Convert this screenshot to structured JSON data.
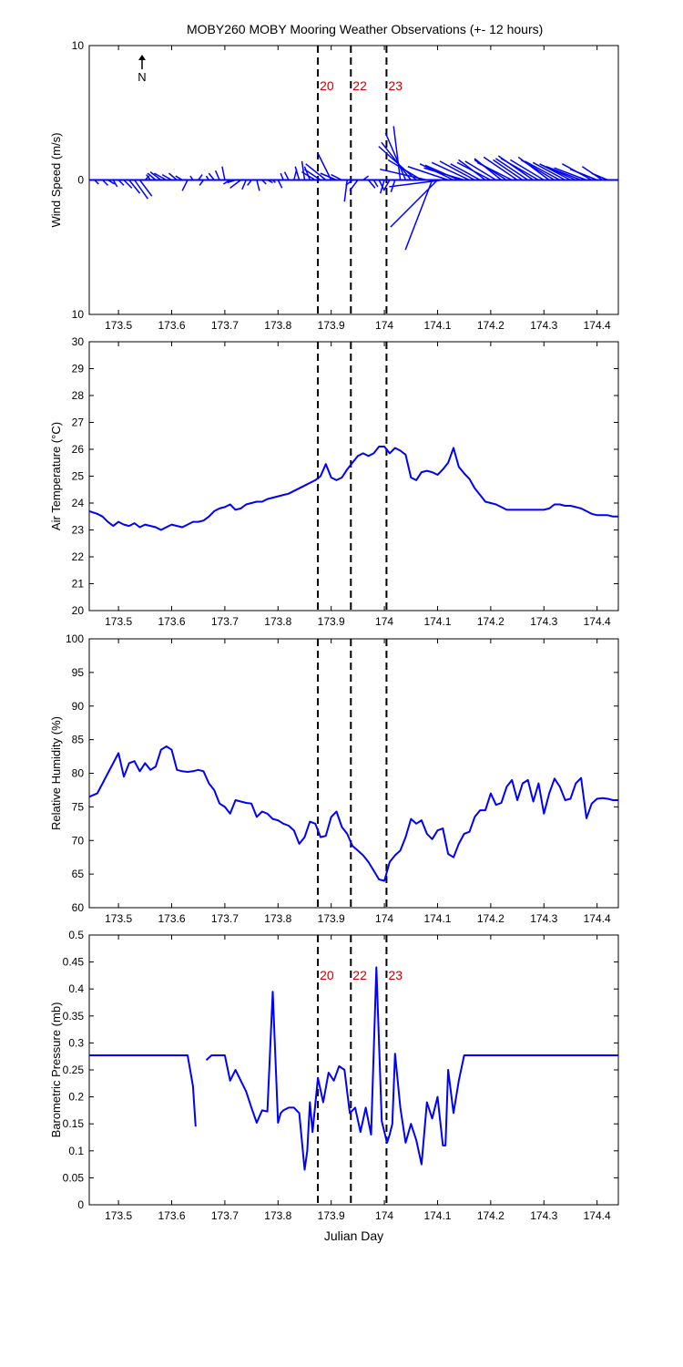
{
  "figure": {
    "title": "MOBY260 MOBY Mooring Weather Observations (+- 12 hours)",
    "xlabel": "Julian Day",
    "north_label": "N",
    "colors": {
      "series": "#0000ff",
      "marker_label": "#cc0000",
      "axis": "#000000"
    }
  },
  "markers": [
    {
      "label": "20",
      "x": 173.875
    },
    {
      "label": "22",
      "x": 173.937
    },
    {
      "label": "23",
      "x": 174.004
    }
  ],
  "chart_data": [
    {
      "type": "line",
      "subtype": "wind-barbs",
      "ylabel": "Wind Speed (m/s)",
      "xlim": [
        173.445,
        174.44
      ],
      "ylim": [
        -10,
        10
      ],
      "yticks": [
        10,
        0,
        10
      ],
      "xticks": [
        "173.5",
        "173.6",
        "173.7",
        "173.8",
        "173.9",
        "174",
        "174.1",
        "174.2",
        "174.3",
        "174.4"
      ],
      "markers_labeled": true,
      "show_north_arrow": true,
      "series": [
        {
          "x": [
            173.455,
            173.47,
            173.48,
            173.49,
            173.5,
            173.51,
            173.52,
            173.53,
            173.54,
            173.55,
            173.56,
            173.57,
            173.58,
            173.59,
            173.6,
            173.61,
            173.62,
            173.63,
            173.64,
            173.65,
            173.66,
            173.67,
            173.68,
            173.69,
            173.7,
            173.71,
            173.72,
            173.73,
            173.74,
            173.75,
            173.76,
            173.77,
            173.78,
            173.79,
            173.8,
            173.81,
            173.82,
            173.83,
            173.84,
            173.85,
            173.86,
            173.87,
            173.88,
            173.89,
            173.9,
            173.91,
            173.92,
            173.93,
            173.94,
            173.95,
            173.96,
            173.97,
            173.98,
            173.99,
            174.0,
            174.01,
            174.02,
            174.03,
            174.04,
            174.05,
            174.06,
            174.07,
            174.08,
            174.09,
            174.1,
            174.11,
            174.12,
            174.13,
            174.14,
            174.15,
            174.16,
            174.17,
            174.18,
            174.19,
            174.2,
            174.21,
            174.22,
            174.23,
            174.24,
            174.25,
            174.26,
            174.27,
            174.28,
            174.29,
            174.3,
            174.31,
            174.32,
            174.33,
            174.34,
            174.35,
            174.36,
            174.37,
            174.38,
            174.39,
            174.4,
            174.41,
            174.42
          ],
          "u": [
            0.3,
            0.4,
            0.5,
            0.3,
            0.4,
            0.6,
            0.8,
            1.0,
            0.9,
            0.3,
            -0.3,
            -0.6,
            -0.8,
            -0.9,
            -0.7,
            -0.6,
            -0.5,
            -0.4,
            -0.2,
            0.3,
            -0.3,
            -0.2,
            -0.4,
            -0.3,
            -0.2,
            -0.5,
            -0.6,
            -0.8,
            -0.3,
            -0.3,
            0.2,
            0.3,
            0.4,
            0.2,
            0.3,
            -0.2,
            -0.3,
            0.2,
            -0.3,
            -0.2,
            -0.4,
            -1.0,
            -1.2,
            -1.5,
            -1.0,
            -1.2,
            -0.8,
            -0.2,
            -0.5,
            -0.6,
            0.4,
            0.5,
            0.3,
            0.4,
            -0.3,
            -0.4,
            -0.3,
            -0.5,
            -1.5,
            -2.2,
            -2.8,
            -2.5,
            -3.5,
            -2.0,
            -3.5,
            -4.0,
            -3.0,
            -2.5,
            -2.5,
            -3.0,
            -2.8,
            -2.6,
            -2.2,
            -2.0,
            -2.5,
            -2.3,
            -2.0,
            -2.4,
            -2.6,
            -2.5,
            -2.2,
            -2.4,
            -2.6,
            -2.8,
            -2.5,
            -2.3,
            -2.5,
            -2.6,
            -2.4,
            -2.3,
            -2.5,
            -2.6,
            -2.4,
            -2.2,
            -2.0,
            -1.5,
            -1.2
          ],
          "v": [
            -0.3,
            -0.4,
            -0.3,
            -0.5,
            -0.4,
            -0.6,
            -1.0,
            -1.4,
            -1.2,
            0.3,
            0.4,
            0.5,
            0.6,
            0.5,
            0.4,
            0.5,
            0.3,
            -0.8,
            0.3,
            0.4,
            -0.4,
            0.3,
            0.5,
            0.7,
            1.0,
            -0.3,
            -0.2,
            -0.6,
            -0.7,
            -0.4,
            -0.8,
            -0.3,
            -0.2,
            -0.2,
            -0.6,
            0.5,
            0.6,
            0.8,
            1.0,
            1.4,
            1.0,
            0.6,
            0.8,
            1.2,
            2.0,
            0.5,
            0.4,
            -1.6,
            -0.4,
            -0.8,
            0.3,
            -0.6,
            -0.5,
            -0.8,
            -1.0,
            -0.7,
            -0.9,
            4.0,
            3.5,
            2.8,
            2.5,
            1.5,
            0.8,
            -5.2,
            -3.5,
            -0.5,
            1.0,
            1.2,
            1.1,
            0.9,
            1.3,
            1.4,
            1.2,
            1.5,
            1.3,
            1.4,
            1.6,
            1.5,
            1.3,
            1.7,
            1.5,
            1.6,
            1.8,
            1.6,
            1.5,
            1.7,
            1.5,
            1.4,
            1.3,
            1.2,
            1.1,
            1.0,
            0.9,
            1.2,
            0.8,
            1.0,
            0.5
          ]
        }
      ]
    },
    {
      "type": "line",
      "ylabel": "Air Temperature (°C)",
      "xlim": [
        173.445,
        174.44
      ],
      "ylim": [
        20,
        30
      ],
      "yticks": [
        20,
        21,
        22,
        23,
        24,
        25,
        26,
        27,
        28,
        29,
        30
      ],
      "xticks": [
        "173.5",
        "173.6",
        "173.7",
        "173.8",
        "173.9",
        "174",
        "174.1",
        "174.2",
        "174.3",
        "174.4"
      ],
      "markers_labeled": false,
      "series": [
        {
          "x": [
            173.445,
            173.46,
            173.47,
            173.48,
            173.49,
            173.5,
            173.51,
            173.52,
            173.53,
            173.54,
            173.55,
            173.56,
            173.57,
            173.58,
            173.59,
            173.6,
            173.61,
            173.62,
            173.63,
            173.64,
            173.65,
            173.66,
            173.67,
            173.68,
            173.69,
            173.7,
            173.71,
            173.72,
            173.73,
            173.74,
            173.75,
            173.76,
            173.77,
            173.78,
            173.79,
            173.8,
            173.81,
            173.82,
            173.83,
            173.84,
            173.85,
            173.86,
            173.87,
            173.88,
            173.89,
            173.9,
            173.91,
            173.92,
            173.93,
            173.94,
            173.95,
            173.96,
            173.97,
            173.98,
            173.99,
            174.0,
            174.01,
            174.02,
            174.03,
            174.04,
            174.05,
            174.06,
            174.07,
            174.08,
            174.09,
            174.1,
            174.11,
            174.12,
            174.13,
            174.14,
            174.15,
            174.16,
            174.17,
            174.18,
            174.19,
            174.2,
            174.21,
            174.22,
            174.23,
            174.24,
            174.25,
            174.26,
            174.27,
            174.28,
            174.29,
            174.3,
            174.31,
            174.32,
            174.33,
            174.34,
            174.35,
            174.36,
            174.37,
            174.38,
            174.39,
            174.4,
            174.41,
            174.42,
            174.43,
            174.44
          ],
          "y": [
            23.7,
            23.6,
            23.5,
            23.3,
            23.15,
            23.3,
            23.2,
            23.15,
            23.25,
            23.1,
            23.2,
            23.15,
            23.1,
            23.0,
            23.1,
            23.2,
            23.15,
            23.1,
            23.2,
            23.3,
            23.3,
            23.35,
            23.5,
            23.7,
            23.8,
            23.85,
            23.95,
            23.75,
            23.8,
            23.95,
            24.0,
            24.05,
            24.05,
            24.15,
            24.2,
            24.25,
            24.3,
            24.35,
            24.45,
            24.55,
            24.65,
            24.75,
            24.85,
            25.0,
            25.45,
            24.95,
            24.85,
            24.95,
            25.25,
            25.5,
            25.75,
            25.85,
            25.75,
            25.85,
            26.1,
            26.1,
            25.85,
            26.05,
            25.95,
            25.8,
            24.95,
            24.85,
            25.15,
            25.2,
            25.15,
            25.05,
            25.25,
            25.5,
            26.05,
            25.35,
            25.1,
            24.9,
            24.55,
            24.3,
            24.05,
            24.0,
            23.95,
            23.85,
            23.75,
            23.75,
            23.75,
            23.75,
            23.75,
            23.75,
            23.75,
            23.75,
            23.8,
            23.95,
            23.95,
            23.9,
            23.9,
            23.85,
            23.8,
            23.7,
            23.6,
            23.55,
            23.55,
            23.55,
            23.5,
            23.5
          ]
        }
      ]
    },
    {
      "type": "line",
      "ylabel": "Relative Humidity (%)",
      "xlim": [
        173.445,
        174.44
      ],
      "ylim": [
        60,
        100
      ],
      "yticks": [
        60,
        65,
        70,
        75,
        80,
        85,
        90,
        95,
        100
      ],
      "xticks": [
        "173.5",
        "173.6",
        "173.7",
        "173.8",
        "173.9",
        "174",
        "174.1",
        "174.2",
        "174.3",
        "174.4"
      ],
      "markers_labeled": false,
      "series": [
        {
          "x": [
            173.445,
            173.46,
            173.47,
            173.48,
            173.49,
            173.5,
            173.51,
            173.52,
            173.53,
            173.54,
            173.55,
            173.56,
            173.57,
            173.58,
            173.59,
            173.6,
            173.61,
            173.62,
            173.63,
            173.64,
            173.65,
            173.66,
            173.67,
            173.68,
            173.69,
            173.7,
            173.71,
            173.72,
            173.73,
            173.74,
            173.75,
            173.76,
            173.77,
            173.78,
            173.79,
            173.8,
            173.81,
            173.82,
            173.83,
            173.84,
            173.85,
            173.86,
            173.87,
            173.88,
            173.89,
            173.9,
            173.91,
            173.92,
            173.93,
            173.94,
            173.95,
            173.96,
            173.97,
            173.98,
            173.99,
            174.0,
            174.01,
            174.02,
            174.03,
            174.04,
            174.05,
            174.06,
            174.07,
            174.08,
            174.09,
            174.1,
            174.11,
            174.12,
            174.13,
            174.14,
            174.15,
            174.16,
            174.17,
            174.18,
            174.19,
            174.2,
            174.21,
            174.22,
            174.23,
            174.24,
            174.25,
            174.26,
            174.27,
            174.28,
            174.29,
            174.3,
            174.31,
            174.32,
            174.33,
            174.34,
            174.35,
            174.36,
            174.37,
            174.38,
            174.39,
            174.4,
            174.41,
            174.42,
            174.43,
            174.44
          ],
          "y": [
            76.5,
            77,
            78.5,
            80,
            81.5,
            83,
            79.5,
            81.5,
            81.8,
            80.3,
            81.5,
            80.5,
            81,
            83.5,
            84,
            83.5,
            80.5,
            80.3,
            80.2,
            80.3,
            80.5,
            80.3,
            78.5,
            77.5,
            75.5,
            75,
            74,
            76,
            75.8,
            75.6,
            75.5,
            73.5,
            74.3,
            74,
            73.2,
            73,
            72.5,
            72.2,
            71.5,
            69.5,
            70.5,
            72.8,
            72.5,
            70.5,
            70.7,
            73.5,
            74.3,
            72,
            71,
            69.2,
            68.5,
            67.8,
            66.8,
            65.5,
            64.2,
            64,
            66.8,
            67.8,
            68.5,
            70.5,
            73.2,
            72.5,
            73,
            71,
            70.2,
            71.5,
            71.8,
            68,
            67.5,
            69.5,
            71,
            71.3,
            73.5,
            74.5,
            74.5,
            77,
            75.3,
            75.6,
            78,
            79,
            76,
            78.5,
            79,
            75.8,
            78.5,
            74,
            77,
            79.2,
            78,
            76,
            76.2,
            78.5,
            79.3,
            73.3,
            75.5,
            76.2,
            76.3,
            76.2,
            76.0,
            76.0
          ]
        }
      ]
    },
    {
      "type": "line",
      "ylabel": "Barometric Pressure (mb)",
      "xlabel": "Julian Day",
      "xlim": [
        173.445,
        174.44
      ],
      "ylim": [
        0,
        0.5
      ],
      "yticks": [
        0,
        0.05,
        0.1,
        0.15,
        0.2,
        0.25,
        0.3,
        0.35,
        0.4,
        0.45,
        0.5
      ],
      "xticks": [
        "173.5",
        "173.6",
        "173.7",
        "173.8",
        "173.9",
        "174",
        "174.1",
        "174.2",
        "174.3",
        "174.4"
      ],
      "markers_labeled": true,
      "series": [
        {
          "x": [
            173.445,
            173.5,
            173.55,
            173.6,
            173.63,
            173.64,
            173.645
          ],
          "y": [
            0.277,
            0.277,
            0.277,
            0.277,
            0.277,
            0.22,
            0.145
          ]
        },
        {
          "x": [
            173.665,
            173.675,
            173.69,
            173.7,
            173.71,
            173.72,
            173.73,
            173.74,
            173.75,
            173.76,
            173.77,
            173.78,
            173.79,
            173.8,
            173.805,
            173.81,
            173.82,
            173.83,
            173.84,
            173.85,
            173.855,
            173.86,
            173.865,
            173.875,
            173.885,
            173.895,
            173.905,
            173.915,
            173.925,
            173.935,
            173.945,
            173.955,
            173.965,
            173.975,
            173.985,
            173.995,
            174.005,
            174.01,
            174.015,
            174.02,
            174.03,
            174.04,
            174.05,
            174.06,
            174.07,
            174.08,
            174.09,
            174.1,
            174.11,
            174.115,
            174.12,
            174.13,
            174.14,
            174.15,
            174.16,
            174.17,
            174.18,
            174.19,
            174.2,
            174.21,
            174.25,
            174.3,
            174.35,
            174.4,
            174.44
          ],
          "y": [
            0.268,
            0.277,
            0.277,
            0.277,
            0.23,
            0.25,
            0.23,
            0.21,
            0.18,
            0.152,
            0.175,
            0.173,
            0.395,
            0.152,
            0.17,
            0.175,
            0.18,
            0.18,
            0.17,
            0.065,
            0.1,
            0.19,
            0.135,
            0.235,
            0.19,
            0.245,
            0.23,
            0.257,
            0.25,
            0.17,
            0.18,
            0.135,
            0.18,
            0.13,
            0.44,
            0.155,
            0.115,
            0.13,
            0.15,
            0.28,
            0.18,
            0.115,
            0.15,
            0.12,
            0.075,
            0.19,
            0.16,
            0.2,
            0.11,
            0.11,
            0.25,
            0.17,
            0.23,
            0.277,
            0.277,
            0.277,
            0.277,
            0.277,
            0.277,
            0.277,
            0.277,
            0.277,
            0.277,
            0.277,
            0.277
          ]
        }
      ]
    }
  ]
}
